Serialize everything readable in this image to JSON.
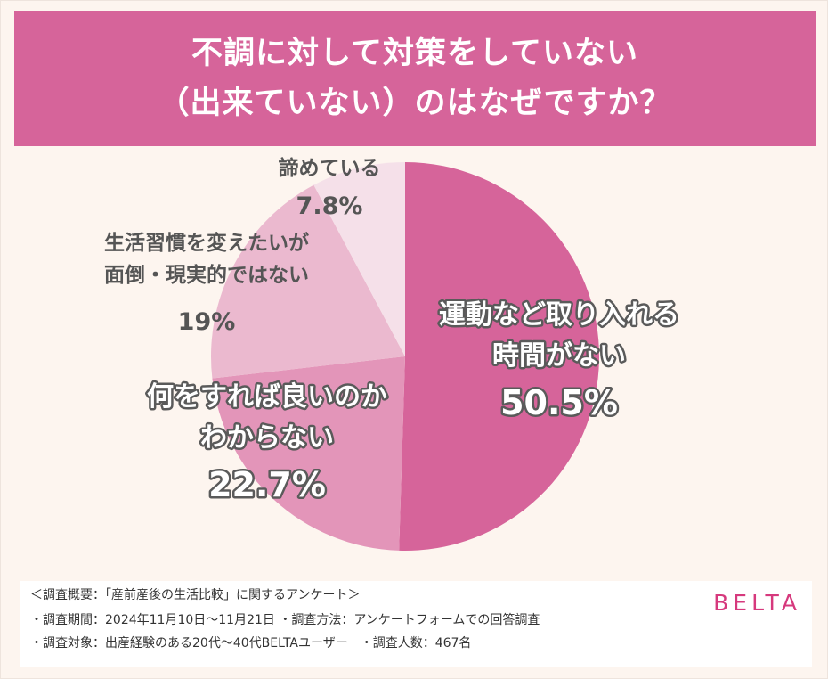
{
  "header": {
    "title_line1": "不調に対して対策をしていない",
    "title_line2": "（出来ていない）のはなぜですか？"
  },
  "chart_data": {
    "type": "pie",
    "title": "不調に対して対策をしていない（出来ていない）のはなぜですか？",
    "slices": [
      {
        "label_lines": [
          "運動など取り入れる",
          "時間がない"
        ],
        "value": 50.5,
        "value_label": "50.5%",
        "color": "#d6649a"
      },
      {
        "label_lines": [
          "何をすれば良いのか",
          "わからない"
        ],
        "value": 22.7,
        "value_label": "22.7%",
        "color": "#e395b9"
      },
      {
        "label_lines": [
          "生活習慣を変えたいが",
          "面倒・現実的ではない"
        ],
        "value": 19,
        "value_label": "19%",
        "color": "#ebb9cf"
      },
      {
        "label_lines": [
          "諦めている"
        ],
        "value": 7.8,
        "value_label": "7.8%",
        "color": "#f5e0e9"
      }
    ]
  },
  "footer": {
    "line1": "＜調査概要：「産前産後の生活比較」に関するアンケート＞",
    "line2": "・調査期間：2024年11月10日～11月21日 ・調査方法：アンケートフォームでの回答調査",
    "line3": "・調査対象：出産経験のある20代～40代BELTAユーザー　・調査人数：467名",
    "brand": "BELTA"
  },
  "colors": {
    "header_bg": "#d6649a",
    "page_bg": "#fdf5ef",
    "brand": "#d6397d",
    "label_dark": "#555555"
  }
}
